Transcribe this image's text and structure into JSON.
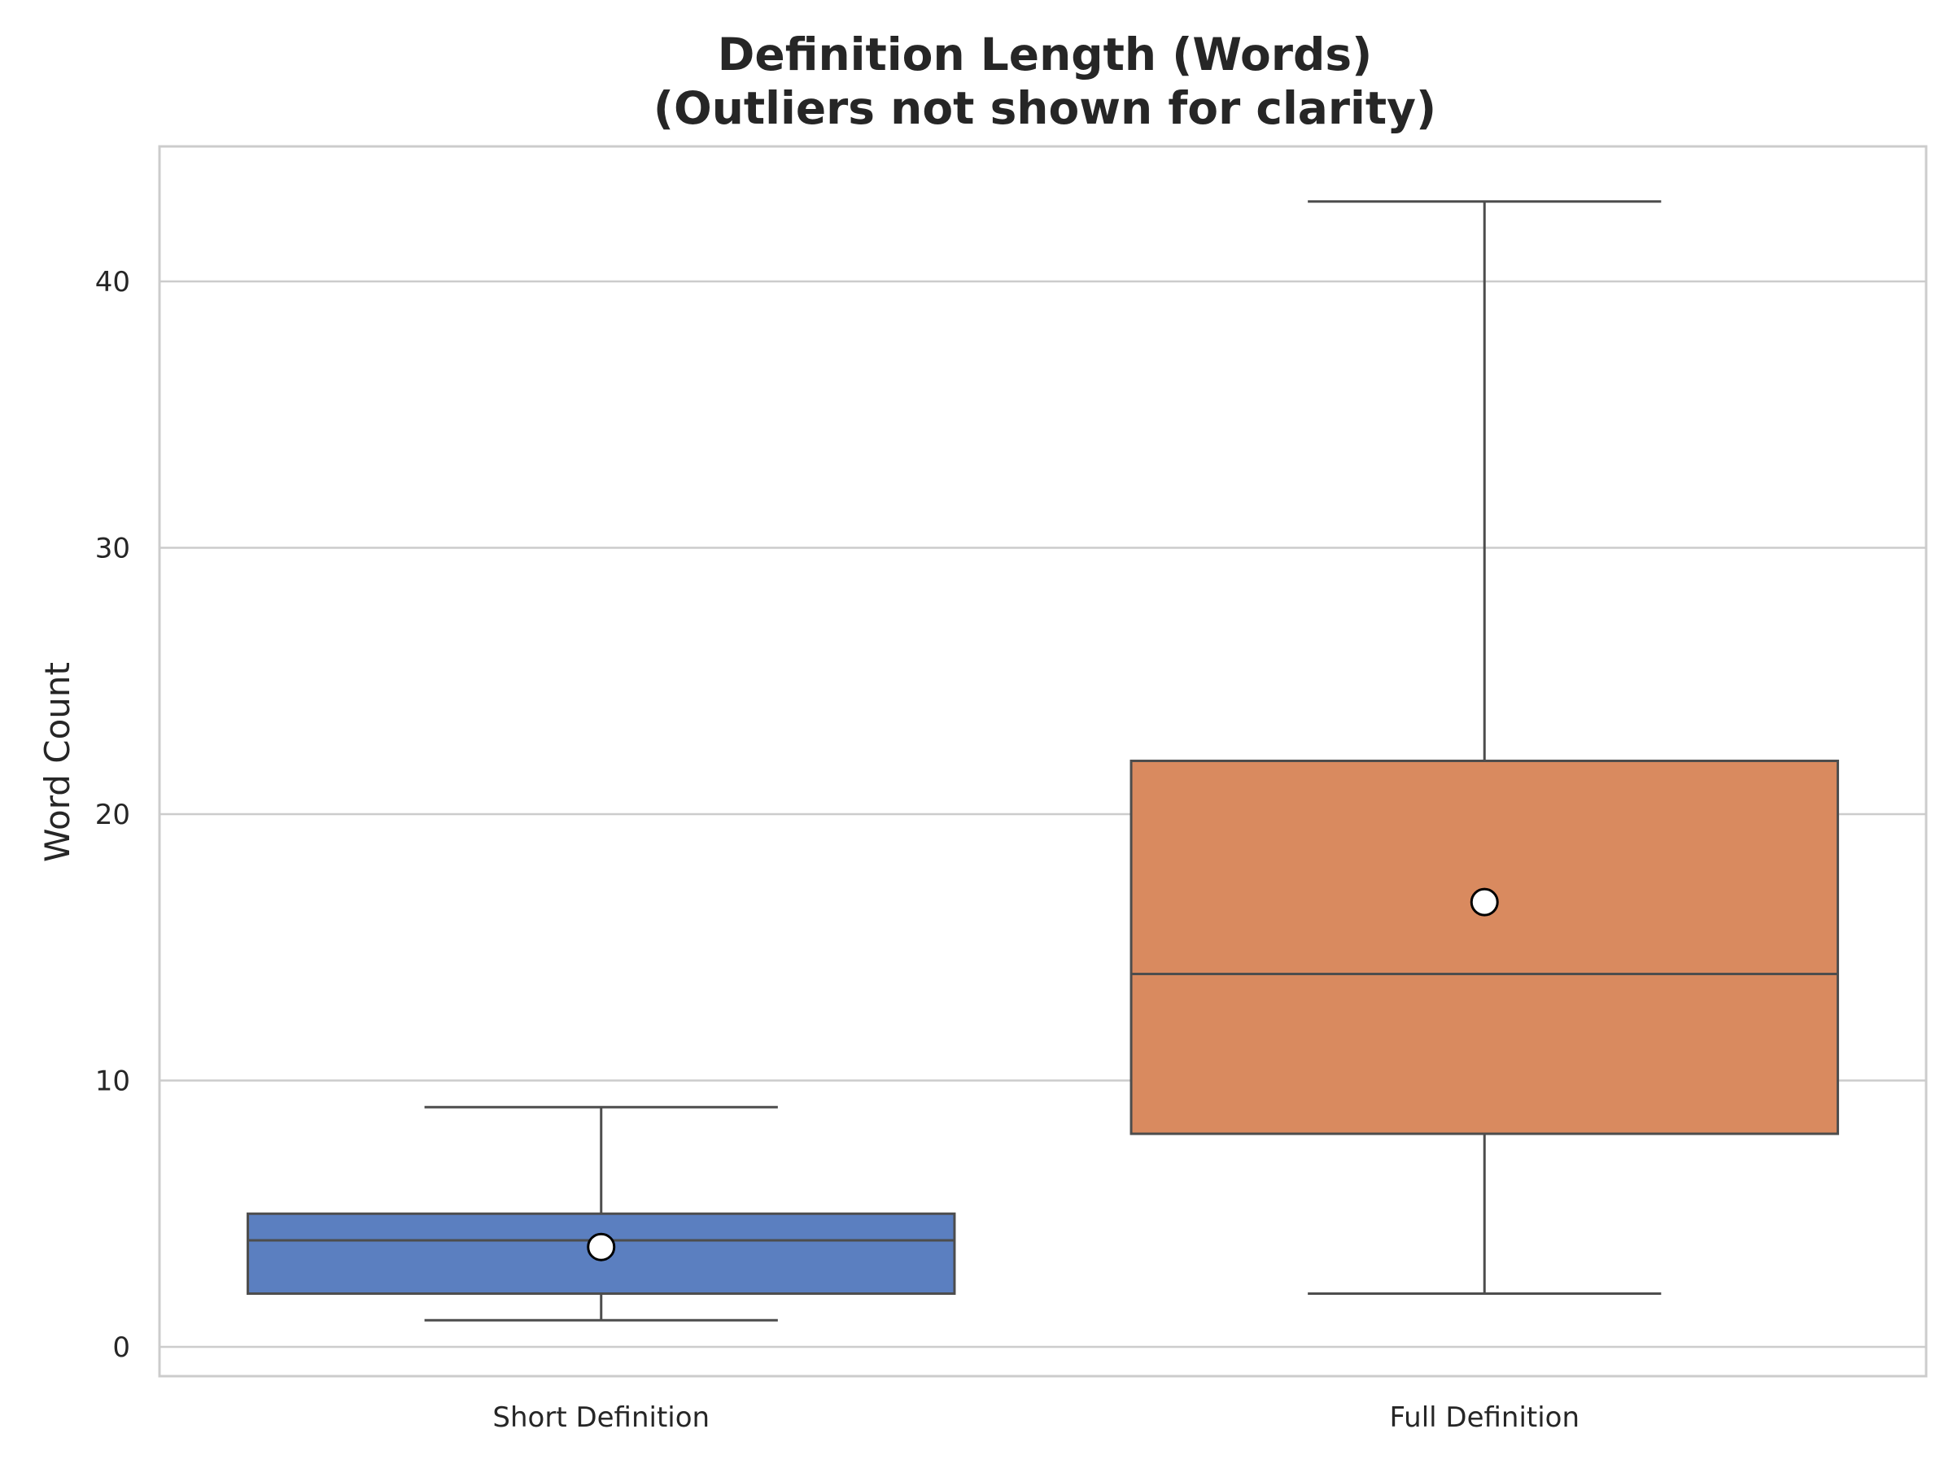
{
  "chart_data": {
    "type": "box",
    "title_lines": [
      "Definition Length (Words)",
      "(Outliers not shown for clarity)"
    ],
    "xlabel": "",
    "ylabel": "Word Count",
    "ylim": [
      -1,
      45
    ],
    "yticks": [
      0,
      10,
      20,
      30,
      40
    ],
    "grid": {
      "y": true,
      "x": false
    },
    "categories": [
      "Short Definition",
      "Full Definition"
    ],
    "series": [
      {
        "category": "Short Definition",
        "whisker_low": 1,
        "q1": 2,
        "median": 4,
        "q3": 5,
        "whisker_high": 9,
        "mean": 3.75,
        "color": "#5b7fc0"
      },
      {
        "category": "Full Definition",
        "whisker_low": 2,
        "q1": 8,
        "median": 14,
        "q3": 22,
        "whisker_high": 43,
        "mean": 16.7,
        "color": "#d98a5f"
      }
    ],
    "colors": {
      "line": "#4d4d4d",
      "grid": "#cccccc",
      "frame": "#cccccc",
      "mean_marker_fill": "#ffffff",
      "mean_marker_edge": "#000000"
    }
  }
}
